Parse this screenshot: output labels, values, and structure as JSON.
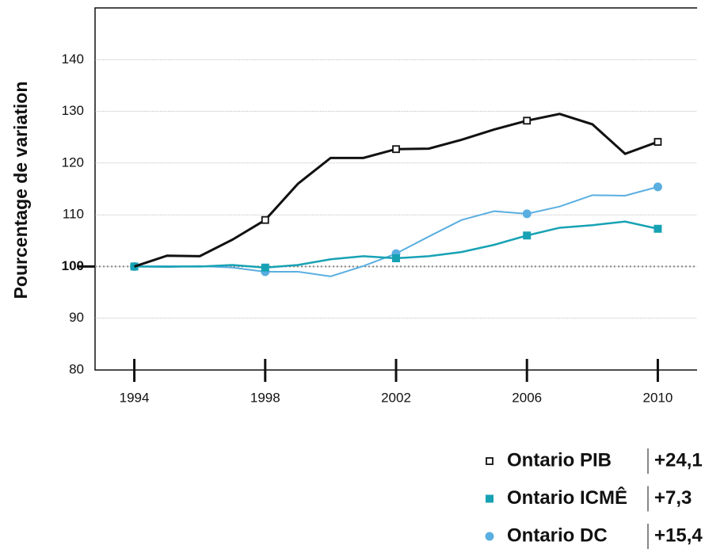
{
  "chart_data": {
    "type": "line",
    "y_label": "Pourcentage de variation",
    "x": [
      1994,
      1995,
      1996,
      1997,
      1998,
      1999,
      2000,
      2001,
      2002,
      2003,
      2004,
      2005,
      2006,
      2007,
      2008,
      2009,
      2010
    ],
    "xlim": [
      1992.8,
      2011.2
    ],
    "xticks": [
      1994,
      1998,
      2002,
      2006,
      2010
    ],
    "ylim": [
      80,
      150
    ],
    "yticks": [
      80,
      90,
      100,
      110,
      120,
      130,
      140
    ],
    "reference_line": 100,
    "grid": true,
    "series": [
      {
        "name": "Ontario PIB",
        "change": "+24,1",
        "color": "#111111",
        "marker": "open-square",
        "values": [
          100,
          102.1,
          102,
          105.2,
          109,
          116,
          121,
          121,
          122.7,
          122.8,
          124.5,
          126.5,
          128.2,
          129.5,
          127.5,
          121.8,
          124.1
        ]
      },
      {
        "name": "Ontario ICMÊ",
        "change": "+7,3",
        "color": "#17a2b4",
        "marker": "square",
        "values": [
          100,
          100,
          100,
          100.3,
          99.8,
          100.3,
          101.4,
          102,
          101.6,
          102,
          102.8,
          104.2,
          106,
          107.5,
          108,
          108.7,
          107.3
        ]
      },
      {
        "name": "Ontario DC",
        "change": "+15,4",
        "color": "#5aaee0",
        "marker": "circle",
        "values": [
          100,
          99.9,
          100.1,
          99.8,
          99,
          99,
          98.1,
          100.1,
          102.5,
          105.8,
          109,
          110.7,
          110.2,
          111.6,
          113.8,
          113.7,
          115.4
        ]
      }
    ]
  }
}
